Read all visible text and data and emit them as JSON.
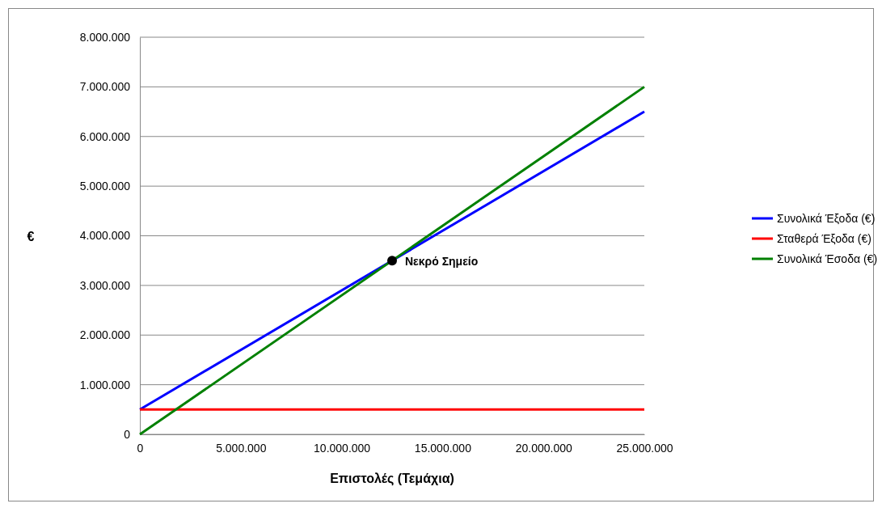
{
  "chart_data": {
    "type": "line",
    "xlabel": "Επιστολές (Τεμάχια)",
    "ylabel": "€",
    "x": [
      0,
      25000000
    ],
    "xlim": [
      0,
      25000000
    ],
    "xticks": [
      {
        "value": 0,
        "label": "0"
      },
      {
        "value": 5000000,
        "label": "5.000.000"
      },
      {
        "value": 10000000,
        "label": "10.000.000"
      },
      {
        "value": 15000000,
        "label": "15.000.000"
      },
      {
        "value": 20000000,
        "label": "20.000.000"
      },
      {
        "value": 25000000,
        "label": "25.000.000"
      }
    ],
    "ylim": [
      0,
      8000000
    ],
    "yticks": [
      {
        "value": 0,
        "label": "0"
      },
      {
        "value": 1000000,
        "label": "1.000.000"
      },
      {
        "value": 2000000,
        "label": "2.000.000"
      },
      {
        "value": 3000000,
        "label": "3.000.000"
      },
      {
        "value": 4000000,
        "label": "4.000.000"
      },
      {
        "value": 5000000,
        "label": "5.000.000"
      },
      {
        "value": 6000000,
        "label": "6.000.000"
      },
      {
        "value": 7000000,
        "label": "7.000.000"
      },
      {
        "value": 8000000,
        "label": "8.000.000"
      }
    ],
    "grid": "y",
    "legend": "right",
    "series": [
      {
        "name": "Συνολικά Έξοδα (€)",
        "color": "#0000ff",
        "values": [
          500000,
          6500000
        ]
      },
      {
        "name": "Σταθερά Έξοδα (€)",
        "color": "#ff0000",
        "values": [
          500000,
          500000
        ]
      },
      {
        "name": "Συνολικά Έσοδα (€)",
        "color": "#008000",
        "values": [
          0,
          7000000
        ]
      },
      {
        "type": "scatter",
        "color": "#000000",
        "x": [
          12500000
        ],
        "values": [
          3500000
        ]
      }
    ],
    "annotations": [
      {
        "text": "Νεκρό Σημείο",
        "x": 12500000,
        "y": 3500000
      }
    ]
  }
}
